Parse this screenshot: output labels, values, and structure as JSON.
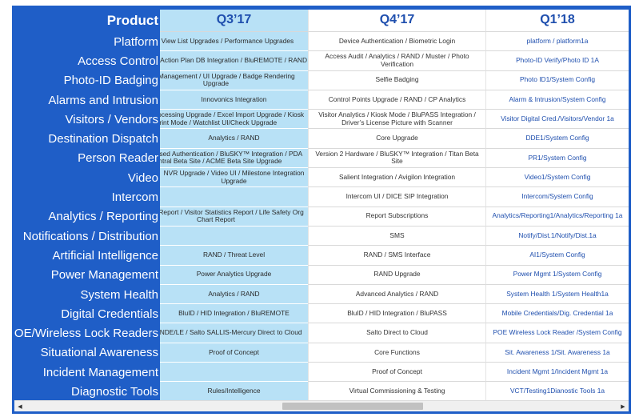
{
  "header": {
    "product": "Product",
    "q1": "Q3’17",
    "q2": "Q4’17",
    "q3": "Q1’18"
  },
  "rows": [
    {
      "product": "Platform",
      "q1": "Person View List Upgrades / Performance Upgrades",
      "q2": "Device Authentication / Biometric Login",
      "q3": "platform / platform1a"
    },
    {
      "product": "Access Control",
      "q1": "Emergency Action Plan DB Integration / BluREMOTE / RAND",
      "q2": "Access Audit / Analytics / RAND / Muster / Photo Verification",
      "q3": "Photo-ID Verify/Photo ID 1A"
    },
    {
      "product": "Photo-ID Badging",
      "q1": "Badge Management / UI Upgrade / Badge Rendering Upgrade",
      "q2": "Selfie Badging",
      "q3": "Photo ID1/System Config"
    },
    {
      "product": "Alarms and Intrusion",
      "q1": "Innovonics Integration",
      "q2": "Control Points Upgrade / RAND / CP Analytics",
      "q3": "Alarm & Intrusion/System Config"
    },
    {
      "product": "Visitors / Vendors",
      "q1": "Vendor Processing Upgrade / Excel Import Upgrade / Kiosk Print Mode / Watchlist UI/Check Upgrade",
      "q2": "Visitor Analytics / Kiosk Mode / BluPASS Integration / Driver’s License Picture with Scanner",
      "q3": "Visitor Digital Cred./Visitors/Vendor 1a"
    },
    {
      "product": "Destination Dispatch",
      "q1": "Analytics / RAND",
      "q2": "Core Upgrade",
      "q3": "DDE1/System Config"
    },
    {
      "product": "Person Reader",
      "q1": "Server-Based Authentication / BluSKY™ Integration / PDA Central Beta Site / ACME Beta Site Upgrade",
      "q2": "Version 2 Hardware / BluSKY™ Integration / Titan Beta Site",
      "q3": "PR1/System Config"
    },
    {
      "product": "Video",
      "q1": "NVR Upgrade / Video UI / Milestone Integration Upgrade",
      "q2": "Salient Integration / Avigilon Integration",
      "q3": "Video1/System Config"
    },
    {
      "product": "Intercom",
      "q1": "",
      "q2": "Intercom UI / DICE SIP Integration",
      "q3": "Intercom/System Config"
    },
    {
      "product": "Analytics / Reporting",
      "q1": "Summary Report / Visitor Statistics Report / Life Safety Org Chart Report",
      "q2": "Report Subscriptions",
      "q3": "Analytics/Reporting1/Analytics/Reporting 1a"
    },
    {
      "product": "Notifications / Distribution",
      "q1": "",
      "q2": "SMS",
      "q3": "Notify/Dist.1/Notify/Dist.1a"
    },
    {
      "product": "Artificial Intelligence",
      "q1": "RAND / Threat Level",
      "q2": "RAND / SMS Interface",
      "q3": "AI1/System Config"
    },
    {
      "product": "Power Management",
      "q1": "Power Analytics Upgrade",
      "q2": "RAND Upgrade",
      "q3": "Power Mgmt 1/System Config"
    },
    {
      "product": "System Health",
      "q1": "Analytics / RAND",
      "q2": "Advanced Analytics / RAND",
      "q3": "System Health 1/System Health1a"
    },
    {
      "product": "Digital Credentials",
      "q1": "BluID / HID Integration / BluREMOTE",
      "q2": "BluID / HID Integration / BluPASS",
      "q3": "Mobile Credentials/Dig. Credential 1a"
    },
    {
      "product": "POE/Wireless Lock Readers",
      "q1": "Allegion - NDE/LE / Salto SALLIS-Mercury Direct to Cloud",
      "q2": "Salto Direct to Cloud",
      "q3": "POE Wireless Lock Reader /System Config"
    },
    {
      "product": "Situational Awareness",
      "q1": "Proof of Concept",
      "q2": "Core Functions",
      "q3": "Sit. Awareness 1/Sit. Awareness 1a"
    },
    {
      "product": "Incident Management",
      "q1": "",
      "q2": "Proof of Concept",
      "q3": "Incident Mgmt 1/Incident Mgmt 1a"
    },
    {
      "product": "Diagnostic Tools",
      "q1": "Rules/Intelligence",
      "q2": "Virtual Commissioning & Testing",
      "q3": "VCT/Testing1Dianostic Tools 1a"
    }
  ],
  "scrollbar": {
    "left_icon": "scroll-left-arrow-icon",
    "right_icon": "scroll-right-arrow-icon",
    "left_glyph": "◀",
    "right_glyph": "▶",
    "thumb_position": 0.57
  }
}
